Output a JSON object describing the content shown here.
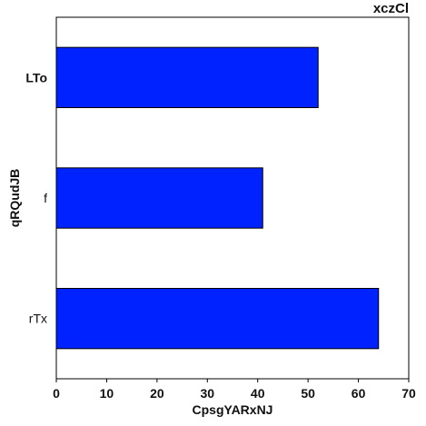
{
  "chart_data": {
    "type": "bar",
    "orientation": "horizontal",
    "title": "xczCl",
    "title_align": "right",
    "xlabel": "CpsgYARxNJ",
    "ylabel": "qRQudJB",
    "categories": [
      "LTo",
      "f",
      "rTx"
    ],
    "bold_categories": [
      "LTo"
    ],
    "values": [
      52,
      41,
      64
    ],
    "xlim": [
      0,
      70
    ],
    "xticks": [
      0,
      10,
      20,
      30,
      40,
      50,
      60,
      70
    ],
    "grid": false,
    "legend": "none",
    "bar_color": "#0022ff",
    "edge_color": "#000000"
  }
}
